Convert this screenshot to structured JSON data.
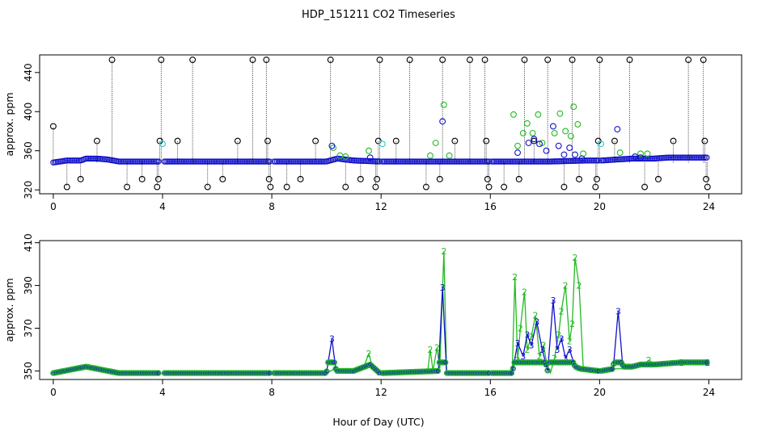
{
  "chart_data": [
    {
      "type": "scatter",
      "title": "HDP_151211  CO2 Timeseries",
      "xlabel": "Hour of Day (UTC)",
      "ylabel": "approx. ppm",
      "xlim": [
        -0.5,
        25.2
      ],
      "ylim": [
        316,
        458
      ],
      "xticks": [
        0,
        4,
        8,
        12,
        16,
        20,
        24
      ],
      "yticks": [
        320,
        360,
        400,
        440
      ],
      "grid": false,
      "series": [
        {
          "color": "#000000",
          "marker": "open-circle",
          "drop_lines": true,
          "points": [
            [
              0.0,
              385
            ],
            [
              0.5,
              323
            ],
            [
              1.0,
              331
            ],
            [
              1.6,
              370
            ],
            [
              2.15,
              453
            ],
            [
              2.7,
              323
            ],
            [
              3.25,
              331
            ],
            [
              3.8,
              323
            ],
            [
              3.85,
              331
            ],
            [
              3.9,
              370
            ],
            [
              3.95,
              453
            ],
            [
              4.55,
              370
            ],
            [
              5.1,
              453
            ],
            [
              5.65,
              323
            ],
            [
              6.2,
              331
            ],
            [
              6.75,
              370
            ],
            [
              7.3,
              453
            ],
            [
              7.8,
              453
            ],
            [
              7.85,
              370
            ],
            [
              7.9,
              331
            ],
            [
              7.95,
              323
            ],
            [
              8.55,
              323
            ],
            [
              9.05,
              331
            ],
            [
              9.6,
              370
            ],
            [
              10.15,
              453
            ],
            [
              10.7,
              323
            ],
            [
              11.25,
              331
            ],
            [
              11.8,
              323
            ],
            [
              11.85,
              331
            ],
            [
              11.9,
              370
            ],
            [
              11.95,
              453
            ],
            [
              12.55,
              370
            ],
            [
              13.05,
              453
            ],
            [
              13.65,
              323
            ],
            [
              14.15,
              331
            ],
            [
              14.25,
              453
            ],
            [
              14.7,
              370
            ],
            [
              15.25,
              453
            ],
            [
              15.8,
              453
            ],
            [
              15.85,
              370
            ],
            [
              15.9,
              331
            ],
            [
              15.95,
              323
            ],
            [
              16.5,
              323
            ],
            [
              17.05,
              331
            ],
            [
              17.25,
              453
            ],
            [
              17.6,
              370
            ],
            [
              18.1,
              453
            ],
            [
              18.7,
              323
            ],
            [
              19.0,
              453
            ],
            [
              19.25,
              331
            ],
            [
              19.85,
              323
            ],
            [
              19.9,
              331
            ],
            [
              19.95,
              370
            ],
            [
              20.0,
              453
            ],
            [
              20.55,
              370
            ],
            [
              21.1,
              453
            ],
            [
              21.65,
              323
            ],
            [
              22.15,
              331
            ],
            [
              22.7,
              370
            ],
            [
              23.25,
              453
            ],
            [
              23.8,
              453
            ],
            [
              23.85,
              370
            ],
            [
              23.9,
              331
            ],
            [
              23.95,
              323
            ]
          ]
        },
        {
          "color": "#22bb22",
          "marker": "open-circle",
          "points": [
            [
              10.25,
              363
            ],
            [
              10.5,
              355
            ],
            [
              10.7,
              354
            ],
            [
              11.55,
              360
            ],
            [
              13.8,
              355
            ],
            [
              14.0,
              368
            ],
            [
              14.3,
              407
            ],
            [
              14.5,
              355
            ],
            [
              16.85,
              397
            ],
            [
              17.0,
              365
            ],
            [
              17.2,
              378
            ],
            [
              17.35,
              388
            ],
            [
              17.55,
              378
            ],
            [
              17.75,
              397
            ],
            [
              17.9,
              368
            ],
            [
              18.35,
              378
            ],
            [
              18.55,
              398
            ],
            [
              18.75,
              380
            ],
            [
              18.95,
              375
            ],
            [
              19.05,
              405
            ],
            [
              19.2,
              387
            ],
            [
              19.4,
              357
            ],
            [
              20.75,
              358
            ],
            [
              21.5,
              357
            ],
            [
              21.75,
              357
            ]
          ]
        },
        {
          "color": "#22cccc",
          "marker": "open-circle",
          "points": [
            [
              4.0,
              367
            ],
            [
              12.05,
              367
            ],
            [
              20.05,
              367
            ]
          ]
        },
        {
          "color": "#1010cc",
          "marker": "open-circle",
          "points": [
            [
              10.2,
              365
            ],
            [
              11.6,
              353
            ],
            [
              14.25,
              390
            ],
            [
              17.0,
              358
            ],
            [
              17.4,
              368
            ],
            [
              17.6,
              372
            ],
            [
              17.8,
              367
            ],
            [
              18.05,
              360
            ],
            [
              18.3,
              385
            ],
            [
              18.5,
              365
            ],
            [
              18.7,
              356
            ],
            [
              18.9,
              363
            ],
            [
              19.1,
              356
            ],
            [
              19.35,
              352
            ],
            [
              20.65,
              382
            ],
            [
              21.3,
              354
            ],
            [
              21.5,
              353
            ]
          ]
        }
      ],
      "baseline": {
        "description": "continuous background of blue circles (approx 348-353 ppm) with gaps in data",
        "points": [
          [
            0.0,
            348
          ],
          [
            0.5,
            350
          ],
          [
            1.0,
            350
          ],
          [
            1.2,
            352
          ],
          [
            1.6,
            352
          ],
          [
            2.0,
            351
          ],
          [
            2.4,
            349
          ],
          [
            3.0,
            349
          ],
          [
            3.85,
            349
          ],
          [
            4.05,
            349
          ],
          [
            5.0,
            349
          ],
          [
            6.0,
            349
          ],
          [
            7.0,
            349
          ],
          [
            7.95,
            349
          ],
          [
            8.1,
            349
          ],
          [
            9.0,
            349
          ],
          [
            10.0,
            349
          ],
          [
            10.4,
            352
          ],
          [
            11.0,
            350
          ],
          [
            11.95,
            349
          ],
          [
            12.05,
            349
          ],
          [
            13.0,
            349
          ],
          [
            13.7,
            349
          ],
          [
            14.4,
            349
          ],
          [
            15.0,
            349
          ],
          [
            15.95,
            349
          ],
          [
            16.05,
            349
          ],
          [
            16.5,
            349
          ],
          [
            16.8,
            349
          ],
          [
            18.0,
            349
          ],
          [
            18.2,
            349
          ],
          [
            19.5,
            350
          ],
          [
            19.95,
            350
          ],
          [
            20.05,
            350
          ],
          [
            20.6,
            351
          ],
          [
            21.2,
            352
          ],
          [
            22.0,
            352
          ],
          [
            22.5,
            353
          ],
          [
            23.0,
            353
          ],
          [
            23.95,
            353
          ]
        ]
      }
    },
    {
      "type": "line",
      "title": "",
      "xlabel": "Hour of Day (UTC)",
      "ylabel": "approx. ppm",
      "xlim": [
        -0.5,
        25.2
      ],
      "ylim": [
        346,
        411
      ],
      "xticks": [
        0,
        4,
        8,
        12,
        16,
        20,
        24
      ],
      "yticks": [
        350,
        370,
        390,
        410
      ],
      "grid": false,
      "series": [
        {
          "color": "#22bb22",
          "label_char": "2",
          "points": [
            [
              0.0,
              349
            ],
            [
              1.2,
              352
            ],
            [
              2.4,
              349
            ],
            [
              3.85,
              349
            ],
            [
              4.05,
              349
            ],
            [
              7.95,
              349
            ],
            [
              8.1,
              349
            ],
            [
              10.0,
              349
            ],
            [
              10.3,
              351
            ],
            [
              10.5,
              350
            ],
            [
              11.0,
              350
            ],
            [
              11.4,
              353
            ],
            [
              11.55,
              358
            ],
            [
              11.7,
              351
            ],
            [
              11.95,
              349
            ],
            [
              12.05,
              349
            ],
            [
              13.7,
              349
            ],
            [
              13.8,
              360
            ],
            [
              13.9,
              350
            ],
            [
              14.05,
              361
            ],
            [
              14.15,
              351
            ],
            [
              14.3,
              406
            ],
            [
              14.4,
              349
            ],
            [
              15.95,
              349
            ],
            [
              16.05,
              349
            ],
            [
              16.8,
              349
            ],
            [
              16.9,
              394
            ],
            [
              17.0,
              355
            ],
            [
              17.1,
              370
            ],
            [
              17.25,
              387
            ],
            [
              17.35,
              360
            ],
            [
              17.5,
              366
            ],
            [
              17.65,
              376
            ],
            [
              17.8,
              357
            ],
            [
              17.95,
              362
            ],
            [
              18.1,
              351
            ],
            [
              18.2,
              349
            ],
            [
              18.35,
              356
            ],
            [
              18.5,
              367
            ],
            [
              18.6,
              378
            ],
            [
              18.75,
              390
            ],
            [
              18.9,
              364
            ],
            [
              19.0,
              372
            ],
            [
              19.1,
              403
            ],
            [
              19.25,
              390
            ],
            [
              19.4,
              352
            ],
            [
              19.6,
              350
            ],
            [
              19.95,
              350
            ],
            [
              20.05,
              350
            ],
            [
              20.6,
              351
            ],
            [
              21.1,
              351
            ],
            [
              21.5,
              352
            ],
            [
              21.8,
              355
            ],
            [
              22.2,
              352
            ],
            [
              23.0,
              354
            ],
            [
              23.95,
              354
            ]
          ]
        },
        {
          "color": "#1010cc",
          "label_char": "3",
          "points": [
            [
              0.0,
              349
            ],
            [
              1.2,
              352
            ],
            [
              2.4,
              349
            ],
            [
              3.85,
              349
            ],
            [
              4.05,
              349
            ],
            [
              7.95,
              349
            ],
            [
              8.1,
              349
            ],
            [
              10.0,
              349
            ],
            [
              10.2,
              365
            ],
            [
              10.35,
              350
            ],
            [
              11.0,
              350
            ],
            [
              11.6,
              353
            ],
            [
              11.95,
              349
            ],
            [
              12.05,
              349
            ],
            [
              14.1,
              350
            ],
            [
              14.25,
              389
            ],
            [
              14.4,
              349
            ],
            [
              15.95,
              349
            ],
            [
              16.05,
              349
            ],
            [
              16.8,
              349
            ],
            [
              17.0,
              363
            ],
            [
              17.2,
              357
            ],
            [
              17.35,
              367
            ],
            [
              17.5,
              362
            ],
            [
              17.7,
              373
            ],
            [
              17.9,
              360
            ],
            [
              18.1,
              350
            ],
            [
              18.3,
              383
            ],
            [
              18.45,
              360
            ],
            [
              18.6,
              365
            ],
            [
              18.75,
              356
            ],
            [
              18.9,
              360
            ],
            [
              19.1,
              352
            ],
            [
              19.3,
              351
            ],
            [
              19.95,
              350
            ],
            [
              20.05,
              350
            ],
            [
              20.5,
              351
            ],
            [
              20.68,
              378
            ],
            [
              20.85,
              352
            ],
            [
              21.2,
              352
            ],
            [
              21.5,
              353
            ],
            [
              22.0,
              353
            ],
            [
              23.0,
              354
            ],
            [
              23.95,
              354
            ]
          ]
        }
      ],
      "gap_hours": [
        [
          3.87,
          4.03
        ],
        [
          7.97,
          8.08
        ],
        [
          11.97,
          12.03
        ],
        [
          15.97,
          16.03
        ],
        [
          19.97,
          20.03
        ]
      ]
    }
  ]
}
